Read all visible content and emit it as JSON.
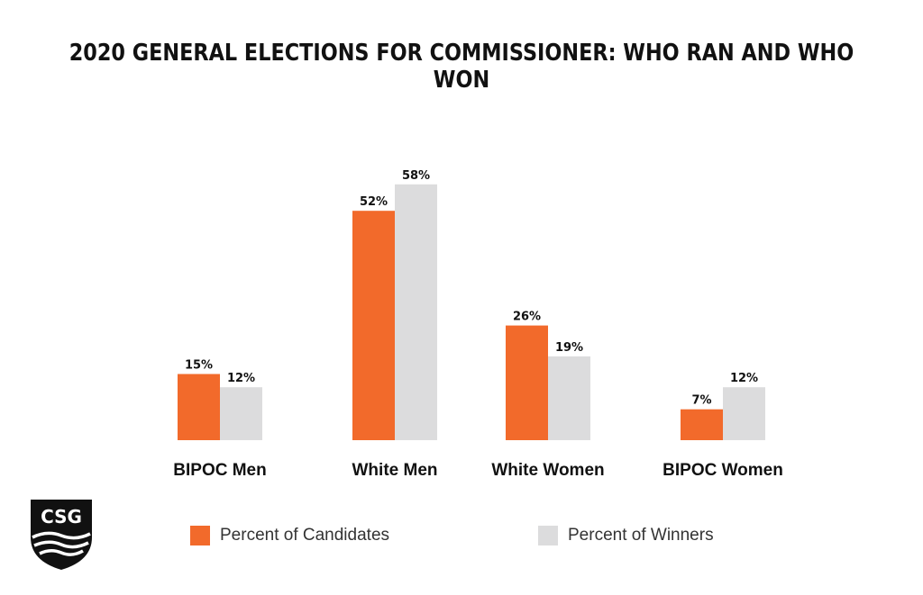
{
  "chart_data": {
    "type": "bar",
    "title": "2020 GENERAL ELECTIONS FOR COMMISSIONER: WHO RAN AND WHO WON",
    "categories": [
      "BIPOC Men",
      "White Men",
      "White Women",
      "BIPOC Women"
    ],
    "series": [
      {
        "name": "Percent of Candidates",
        "values": [
          15,
          52,
          26,
          7
        ],
        "color": "#f26a2b",
        "labels": [
          "15%",
          "52%",
          "26%",
          "7%"
        ]
      },
      {
        "name": "Percent of Winners",
        "values": [
          12,
          58,
          19,
          12
        ],
        "color": "#dcdcdd",
        "labels": [
          "12%",
          "58%",
          "19%",
          "12%"
        ]
      }
    ],
    "xlabel": "",
    "ylabel": "",
    "ylim": [
      0,
      60
    ],
    "grid": false,
    "legend_position": "bottom"
  },
  "logo": {
    "text": "CSG",
    "icon": "csg-shield-logo"
  }
}
